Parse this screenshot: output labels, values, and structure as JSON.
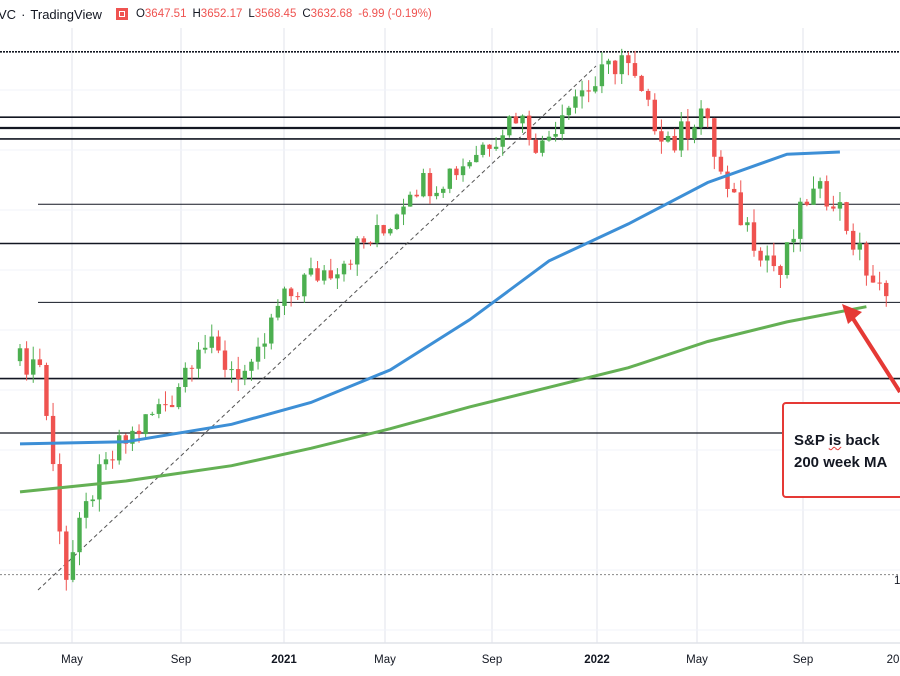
{
  "header": {
    "symbol": "VC",
    "separator": "·",
    "provider": "TradingView",
    "ohlc": {
      "open_label": "O",
      "open": "3647.51",
      "high_label": "H",
      "high": "3652.17",
      "low_label": "L",
      "low": "3568.45",
      "close_label": "C",
      "close": "3632.68",
      "change": "-6.99 (-0.19%)"
    }
  },
  "annotation": {
    "line1_pre": "S&P ",
    "line1_squiggle": "is",
    "line1_post": " back",
    "line2": "200 week MA"
  },
  "colors": {
    "up": "#26a69a",
    "up_bright": "#4caf50",
    "down": "#ef5350",
    "ma100": "#3d8fd6",
    "ma200": "#64b054",
    "arrow": "#e53935"
  },
  "chart_data": {
    "type": "line",
    "title": "",
    "time_axis": [
      "May",
      "Sep",
      "2021",
      "May",
      "Sep",
      "2022",
      "May",
      "Sep",
      "20"
    ],
    "corner_label": "1",
    "ylim": [
      2100,
      4900
    ],
    "series": [
      {
        "color": "#26a69a",
        "x": [
          "2020-02",
          "2020-03",
          "2020-04",
          "2020-05",
          "2020-06",
          "2020-07",
          "2020-08",
          "2020-09",
          "2020-10",
          "2020-11",
          "2020-12",
          "2021-01",
          "2021-02",
          "2021-03",
          "2021-04",
          "2021-05",
          "2021-06",
          "2021-07",
          "2021-08",
          "2021-09",
          "2021-10",
          "2021-11",
          "2021-12",
          "2022-01",
          "2022-02",
          "2022-03",
          "2022-04",
          "2022-05",
          "2022-06",
          "2022-07",
          "2022-08",
          "2022-09",
          "2022-10"
        ],
        "values": [
          3380,
          2400,
          2790,
          2980,
          3100,
          3220,
          3480,
          3370,
          3310,
          3620,
          3750,
          3810,
          3900,
          3970,
          4190,
          4210,
          4290,
          4400,
          4520,
          4360,
          4600,
          4650,
          4780,
          4520,
          4380,
          4540,
          4140,
          3950,
          3780,
          4130,
          4150,
          3860,
          3640
        ]
      },
      {
        "color": "#3d8fd6",
        "x": [
          "2020-02",
          "2020-06",
          "2020-10",
          "2021-01",
          "2021-04",
          "2021-07",
          "2021-10",
          "2022-01",
          "2022-04",
          "2022-07",
          "2022-09"
        ],
        "values": [
          3000,
          3010,
          3090,
          3190,
          3340,
          3570,
          3840,
          4010,
          4200,
          4330,
          4340
        ]
      },
      {
        "color": "#64b054",
        "x": [
          "2020-02",
          "2020-06",
          "2020-10",
          "2021-01",
          "2021-04",
          "2021-07",
          "2021-10",
          "2022-01",
          "2022-04",
          "2022-07",
          "2022-10"
        ],
        "values": [
          2780,
          2830,
          2900,
          2980,
          3070,
          3170,
          3260,
          3350,
          3470,
          3560,
          3630
        ]
      }
    ],
    "horizontal_levels": [
      4800,
      4500,
      4450,
      4400,
      4100,
      3920,
      3650,
      3300,
      3050,
      2400
    ],
    "legend": "none",
    "grid": true
  }
}
